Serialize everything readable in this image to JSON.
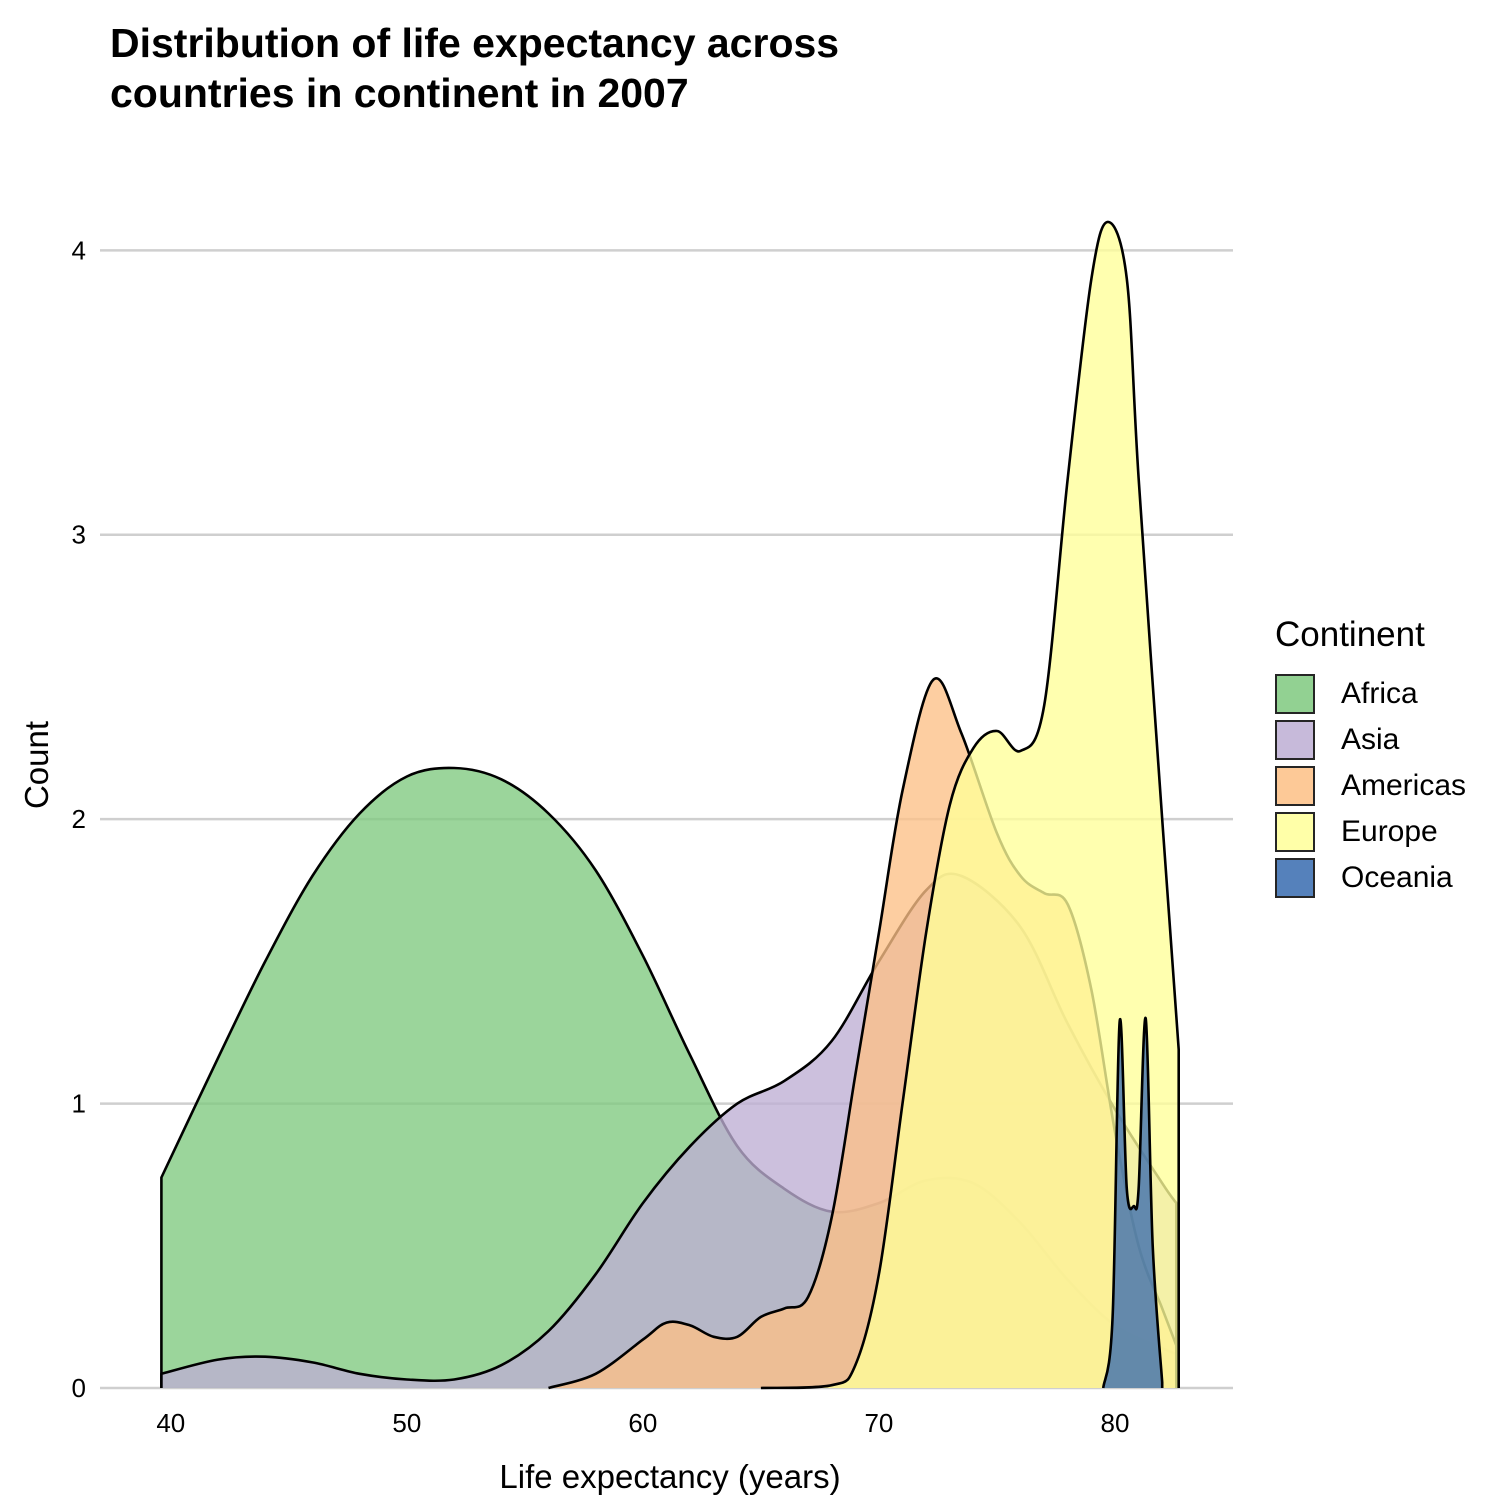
{
  "chart_data": {
    "type": "area",
    "title": "Distribution of life expectancy across\ncountries in continent in 2007",
    "xlabel": "Life expectancy (years)",
    "ylabel": "Count",
    "xlim": [
      37,
      85
    ],
    "ylim": [
      0,
      4.3
    ],
    "x_ticks": [
      40,
      50,
      60,
      70,
      80
    ],
    "y_ticks": [
      0,
      1,
      2,
      3,
      4
    ],
    "grid": "horizontal major gridlines",
    "legend": {
      "title": "Continent",
      "position": "right"
    },
    "series": [
      {
        "name": "Africa",
        "color": "#7FC97F",
        "points": [
          [
            39.6,
            0.74
          ],
          [
            42,
            1.16
          ],
          [
            44,
            1.5
          ],
          [
            46,
            1.8
          ],
          [
            48,
            2.02
          ],
          [
            50,
            2.15
          ],
          [
            52,
            2.18
          ],
          [
            54,
            2.14
          ],
          [
            56,
            2.02
          ],
          [
            58,
            1.82
          ],
          [
            60,
            1.52
          ],
          [
            62,
            1.17
          ],
          [
            64,
            0.85
          ],
          [
            66,
            0.7
          ],
          [
            68,
            0.62
          ],
          [
            70,
            0.65
          ],
          [
            72,
            0.73
          ],
          [
            74,
            0.72
          ],
          [
            76,
            0.58
          ],
          [
            78,
            0.38
          ],
          [
            80,
            0.22
          ],
          [
            82,
            0.14
          ],
          [
            82.6,
            0.12
          ]
        ]
      },
      {
        "name": "Asia",
        "color": "#BEAED4",
        "points": [
          [
            39.6,
            0.05
          ],
          [
            42,
            0.1
          ],
          [
            44,
            0.11
          ],
          [
            46,
            0.09
          ],
          [
            48,
            0.05
          ],
          [
            50,
            0.03
          ],
          [
            52,
            0.03
          ],
          [
            54,
            0.08
          ],
          [
            56,
            0.2
          ],
          [
            58,
            0.4
          ],
          [
            60,
            0.65
          ],
          [
            62,
            0.85
          ],
          [
            64,
            1.0
          ],
          [
            66,
            1.08
          ],
          [
            68,
            1.22
          ],
          [
            70,
            1.5
          ],
          [
            72,
            1.75
          ],
          [
            73.5,
            1.8
          ],
          [
            76,
            1.62
          ],
          [
            78,
            1.28
          ],
          [
            80,
            0.98
          ],
          [
            82,
            0.72
          ],
          [
            82.6,
            0.65
          ]
        ]
      },
      {
        "name": "Americas",
        "color": "#FDC086",
        "points": [
          [
            56,
            0
          ],
          [
            58,
            0.05
          ],
          [
            60,
            0.17
          ],
          [
            61,
            0.23
          ],
          [
            62,
            0.22
          ],
          [
            63,
            0.18
          ],
          [
            64,
            0.18
          ],
          [
            65,
            0.25
          ],
          [
            66,
            0.28
          ],
          [
            67,
            0.32
          ],
          [
            68,
            0.6
          ],
          [
            69,
            1.1
          ],
          [
            70,
            1.6
          ],
          [
            71,
            2.1
          ],
          [
            72.3,
            2.49
          ],
          [
            73.5,
            2.3
          ],
          [
            75,
            1.95
          ],
          [
            76,
            1.8
          ],
          [
            77,
            1.74
          ],
          [
            78,
            1.7
          ],
          [
            79,
            1.4
          ],
          [
            80,
            0.9
          ],
          [
            81,
            0.5
          ],
          [
            82,
            0.28
          ],
          [
            82.6,
            0.15
          ]
        ]
      },
      {
        "name": "Europe",
        "color": "#FFFF99",
        "points": [
          [
            65,
            0
          ],
          [
            68,
            0.01
          ],
          [
            69,
            0.08
          ],
          [
            70,
            0.4
          ],
          [
            71,
            1.0
          ],
          [
            72,
            1.6
          ],
          [
            73,
            2.05
          ],
          [
            74,
            2.25
          ],
          [
            75,
            2.31
          ],
          [
            76,
            2.24
          ],
          [
            77,
            2.4
          ],
          [
            78,
            3.2
          ],
          [
            79,
            3.9
          ],
          [
            79.7,
            4.1
          ],
          [
            80.5,
            3.9
          ],
          [
            81,
            3.2
          ],
          [
            82,
            2.0
          ],
          [
            82.7,
            1.19
          ]
        ]
      },
      {
        "name": "Oceania",
        "color": "#386CB0",
        "points": [
          [
            79.5,
            0
          ],
          [
            79.9,
            0.25
          ],
          [
            80.2,
            1.29
          ],
          [
            80.5,
            0.7
          ],
          [
            80.8,
            0.64
          ],
          [
            81.0,
            0.7
          ],
          [
            81.3,
            1.3
          ],
          [
            81.6,
            0.5
          ],
          [
            82.0,
            0.02
          ]
        ]
      }
    ]
  }
}
